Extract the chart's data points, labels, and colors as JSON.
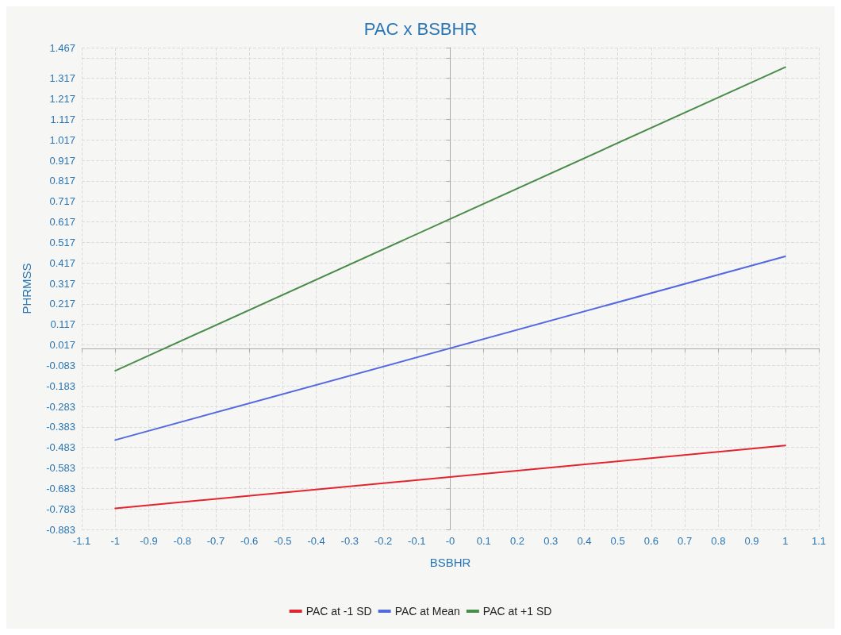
{
  "chart_data": {
    "type": "line",
    "title": "PAC x BSBHR",
    "xlabel": "BSBHR",
    "ylabel": "PHRMSS",
    "x": [
      -1,
      1
    ],
    "series": [
      {
        "name": "PAC at -1 SD",
        "color": "#e3242f",
        "values": [
          -0.78,
          -0.474
        ]
      },
      {
        "name": "PAC at Mean",
        "color": "#5468e0",
        "values": [
          -0.447,
          0.449
        ]
      },
      {
        "name": "PAC at +1 SD",
        "color": "#4a8c4a",
        "values": [
          -0.109,
          1.372
        ]
      }
    ],
    "xlim": [
      -1.1,
      1.1
    ],
    "xticks": [
      -1.1,
      -1,
      -0.9,
      -0.8,
      -0.7,
      -0.6,
      -0.5,
      -0.4,
      -0.3,
      -0.2,
      -0.1,
      {
        "value": 0,
        "label": "-0"
      },
      0.1,
      0.2,
      0.3,
      0.4,
      0.5,
      0.6,
      0.7,
      0.8,
      0.9,
      1,
      1.1
    ],
    "ylim": [
      -0.883,
      1.467
    ],
    "yticks": [
      -0.883,
      -0.783,
      -0.683,
      -0.583,
      -0.483,
      -0.383,
      -0.283,
      -0.183,
      -0.083,
      0.017,
      0.117,
      0.217,
      0.317,
      0.417,
      0.517,
      0.617,
      0.717,
      0.817,
      0.917,
      1.017,
      1.117,
      1.217,
      1.317,
      {
        "value": 1.417,
        "label": null
      },
      1.467
    ],
    "grid": true,
    "legend": "bottom",
    "marker": "none",
    "line_style": "solid"
  }
}
